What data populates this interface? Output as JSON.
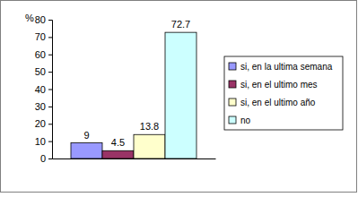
{
  "chart_data": {
    "type": "bar",
    "ylabel": "%",
    "categories": [
      "si, en la ultima semana",
      "si, en el ultimo mes",
      "si, en el ultimo año",
      "no"
    ],
    "values": [
      9,
      4.5,
      13.8,
      72.7
    ],
    "colors": [
      "#9999ff",
      "#993366",
      "#ffffcc",
      "#ccffff"
    ],
    "ylim": [
      0,
      80
    ],
    "yticks": [
      0,
      10,
      20,
      30,
      40,
      50,
      60,
      70,
      80
    ],
    "grid": false,
    "legend": "right",
    "data_labels": true,
    "tick_labels": "y"
  }
}
